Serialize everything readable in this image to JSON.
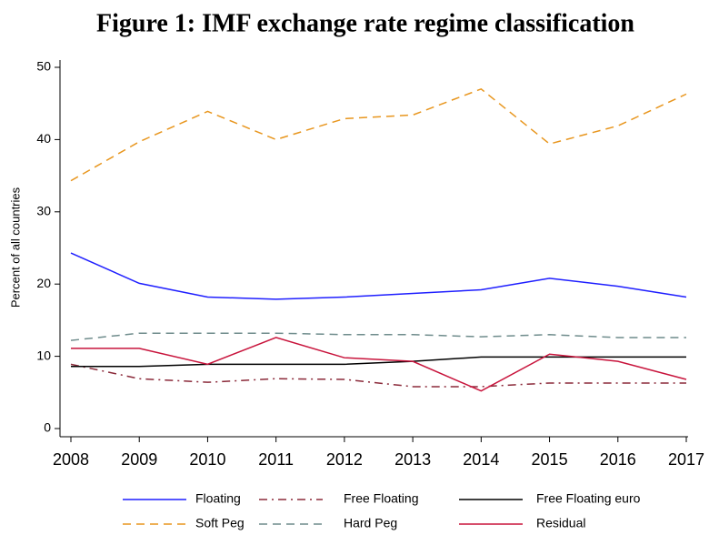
{
  "chart_data": {
    "type": "line",
    "title": "Figure 1: IMF exchange rate regime classification",
    "y_label": "Percent of all countries",
    "x": [
      2008,
      2009,
      2010,
      2011,
      2012,
      2013,
      2014,
      2015,
      2016,
      2017
    ],
    "xlim": [
      2008,
      2017
    ],
    "xticks": [
      2008,
      2009,
      2010,
      2011,
      2012,
      2013,
      2014,
      2015,
      2016,
      2017
    ],
    "ylim": [
      0,
      50
    ],
    "yticks": [
      0,
      10,
      20,
      30,
      40,
      50
    ],
    "grid": false,
    "legend": "bottom",
    "series": [
      {
        "name": "Floating",
        "color": "#1f1fff",
        "style": "solid",
        "values": [
          24.3,
          20.1,
          18.2,
          17.9,
          18.2,
          18.7,
          19.2,
          20.8,
          19.7,
          18.2
        ]
      },
      {
        "name": "Free Floating",
        "color": "#8b2a3a",
        "style": "dashdot",
        "values": [
          8.9,
          6.9,
          6.4,
          6.9,
          6.8,
          5.8,
          5.8,
          6.3,
          6.3,
          6.3
        ]
      },
      {
        "name": "Free Floating euro",
        "color": "#000000",
        "style": "solid",
        "values": [
          8.6,
          8.6,
          8.9,
          8.9,
          8.9,
          9.3,
          9.9,
          9.9,
          9.9,
          9.9
        ]
      },
      {
        "name": "Soft Peg",
        "color": "#e8961e",
        "style": "dashed",
        "values": [
          34.3,
          39.7,
          43.9,
          40.0,
          42.9,
          43.4,
          47.0,
          39.4,
          41.9,
          46.3
        ]
      },
      {
        "name": "Hard Peg",
        "color": "#6f8c8c",
        "style": "dashed",
        "values": [
          12.2,
          13.2,
          13.2,
          13.2,
          13.0,
          13.0,
          12.7,
          13.0,
          12.6,
          12.6
        ]
      },
      {
        "name": "Residual",
        "color": "#c8143c",
        "style": "solid",
        "values": [
          11.1,
          11.1,
          8.9,
          12.6,
          9.8,
          9.3,
          5.2,
          10.3,
          9.3,
          6.8
        ]
      }
    ]
  }
}
